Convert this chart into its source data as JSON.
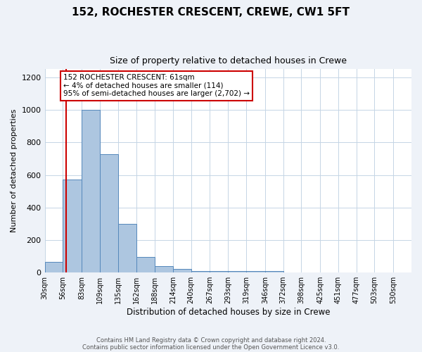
{
  "title": "152, ROCHESTER CRESCENT, CREWE, CW1 5FT",
  "subtitle": "Size of property relative to detached houses in Crewe",
  "xlabel": "Distribution of detached houses by size in Crewe",
  "ylabel": "Number of detached properties",
  "bar_edges": [
    30,
    56,
    83,
    109,
    135,
    162,
    188,
    214,
    240,
    267,
    293,
    319,
    346,
    372,
    398,
    425,
    451,
    477,
    503,
    530,
    556
  ],
  "bar_heights": [
    65,
    570,
    1000,
    730,
    300,
    95,
    38,
    22,
    10,
    8,
    8,
    8,
    10,
    0,
    0,
    0,
    0,
    0,
    0,
    0
  ],
  "bar_color": "#adc6e0",
  "bar_edge_color": "#5588bb",
  "red_line_x": 61,
  "annotation_text": "152 ROCHESTER CRESCENT: 61sqm\n← 4% of detached houses are smaller (114)\n95% of semi-detached houses are larger (2,702) →",
  "annotation_box_color": "#ffffff",
  "annotation_box_edge_color": "#cc0000",
  "ylim": [
    0,
    1250
  ],
  "yticks": [
    0,
    200,
    400,
    600,
    800,
    1000,
    1200
  ],
  "footer_line1": "Contains HM Land Registry data © Crown copyright and database right 2024.",
  "footer_line2": "Contains public sector information licensed under the Open Government Licence v3.0.",
  "background_color": "#eef2f8",
  "plot_background_color": "#ffffff"
}
